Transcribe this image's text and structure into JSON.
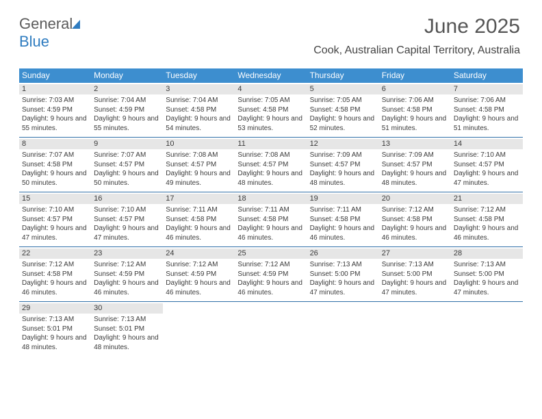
{
  "brand": {
    "part1": "General",
    "part2": "Blue",
    "accent": "#2f7cc0",
    "text_color": "#5b5b5b"
  },
  "title": "June 2025",
  "location": "Cook, Australian Capital Territory, Australia",
  "colors": {
    "header_bg": "#3d8ecf",
    "header_text": "#ffffff",
    "daynum_bg": "#e6e6e6",
    "week_border": "#2f6fa8",
    "body_text": "#3a3a3a"
  },
  "columns": [
    "Sunday",
    "Monday",
    "Tuesday",
    "Wednesday",
    "Thursday",
    "Friday",
    "Saturday"
  ],
  "weeks": [
    [
      {
        "n": "1",
        "sunrise": "7:03 AM",
        "sunset": "4:59 PM",
        "daylight": "9 hours and 55 minutes."
      },
      {
        "n": "2",
        "sunrise": "7:04 AM",
        "sunset": "4:59 PM",
        "daylight": "9 hours and 55 minutes."
      },
      {
        "n": "3",
        "sunrise": "7:04 AM",
        "sunset": "4:58 PM",
        "daylight": "9 hours and 54 minutes."
      },
      {
        "n": "4",
        "sunrise": "7:05 AM",
        "sunset": "4:58 PM",
        "daylight": "9 hours and 53 minutes."
      },
      {
        "n": "5",
        "sunrise": "7:05 AM",
        "sunset": "4:58 PM",
        "daylight": "9 hours and 52 minutes."
      },
      {
        "n": "6",
        "sunrise": "7:06 AM",
        "sunset": "4:58 PM",
        "daylight": "9 hours and 51 minutes."
      },
      {
        "n": "7",
        "sunrise": "7:06 AM",
        "sunset": "4:58 PM",
        "daylight": "9 hours and 51 minutes."
      }
    ],
    [
      {
        "n": "8",
        "sunrise": "7:07 AM",
        "sunset": "4:58 PM",
        "daylight": "9 hours and 50 minutes."
      },
      {
        "n": "9",
        "sunrise": "7:07 AM",
        "sunset": "4:57 PM",
        "daylight": "9 hours and 50 minutes."
      },
      {
        "n": "10",
        "sunrise": "7:08 AM",
        "sunset": "4:57 PM",
        "daylight": "9 hours and 49 minutes."
      },
      {
        "n": "11",
        "sunrise": "7:08 AM",
        "sunset": "4:57 PM",
        "daylight": "9 hours and 48 minutes."
      },
      {
        "n": "12",
        "sunrise": "7:09 AM",
        "sunset": "4:57 PM",
        "daylight": "9 hours and 48 minutes."
      },
      {
        "n": "13",
        "sunrise": "7:09 AM",
        "sunset": "4:57 PM",
        "daylight": "9 hours and 48 minutes."
      },
      {
        "n": "14",
        "sunrise": "7:10 AM",
        "sunset": "4:57 PM",
        "daylight": "9 hours and 47 minutes."
      }
    ],
    [
      {
        "n": "15",
        "sunrise": "7:10 AM",
        "sunset": "4:57 PM",
        "daylight": "9 hours and 47 minutes."
      },
      {
        "n": "16",
        "sunrise": "7:10 AM",
        "sunset": "4:57 PM",
        "daylight": "9 hours and 47 minutes."
      },
      {
        "n": "17",
        "sunrise": "7:11 AM",
        "sunset": "4:58 PM",
        "daylight": "9 hours and 46 minutes."
      },
      {
        "n": "18",
        "sunrise": "7:11 AM",
        "sunset": "4:58 PM",
        "daylight": "9 hours and 46 minutes."
      },
      {
        "n": "19",
        "sunrise": "7:11 AM",
        "sunset": "4:58 PM",
        "daylight": "9 hours and 46 minutes."
      },
      {
        "n": "20",
        "sunrise": "7:12 AM",
        "sunset": "4:58 PM",
        "daylight": "9 hours and 46 minutes."
      },
      {
        "n": "21",
        "sunrise": "7:12 AM",
        "sunset": "4:58 PM",
        "daylight": "9 hours and 46 minutes."
      }
    ],
    [
      {
        "n": "22",
        "sunrise": "7:12 AM",
        "sunset": "4:58 PM",
        "daylight": "9 hours and 46 minutes."
      },
      {
        "n": "23",
        "sunrise": "7:12 AM",
        "sunset": "4:59 PM",
        "daylight": "9 hours and 46 minutes."
      },
      {
        "n": "24",
        "sunrise": "7:12 AM",
        "sunset": "4:59 PM",
        "daylight": "9 hours and 46 minutes."
      },
      {
        "n": "25",
        "sunrise": "7:12 AM",
        "sunset": "4:59 PM",
        "daylight": "9 hours and 46 minutes."
      },
      {
        "n": "26",
        "sunrise": "7:13 AM",
        "sunset": "5:00 PM",
        "daylight": "9 hours and 47 minutes."
      },
      {
        "n": "27",
        "sunrise": "7:13 AM",
        "sunset": "5:00 PM",
        "daylight": "9 hours and 47 minutes."
      },
      {
        "n": "28",
        "sunrise": "7:13 AM",
        "sunset": "5:00 PM",
        "daylight": "9 hours and 47 minutes."
      }
    ],
    [
      {
        "n": "29",
        "sunrise": "7:13 AM",
        "sunset": "5:01 PM",
        "daylight": "9 hours and 48 minutes."
      },
      {
        "n": "30",
        "sunrise": "7:13 AM",
        "sunset": "5:01 PM",
        "daylight": "9 hours and 48 minutes."
      },
      null,
      null,
      null,
      null,
      null
    ]
  ],
  "labels": {
    "sunrise": "Sunrise: ",
    "sunset": "Sunset: ",
    "daylight": "Daylight: "
  }
}
